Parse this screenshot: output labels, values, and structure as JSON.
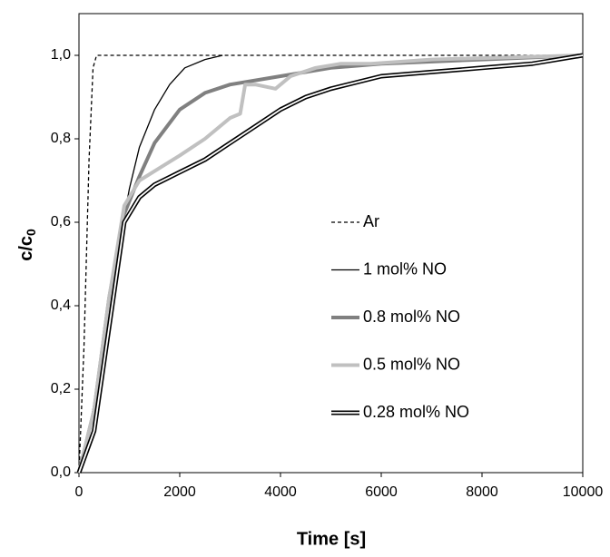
{
  "chart_data": {
    "type": "line",
    "x_label": "Time [s]",
    "y_label": "c/c",
    "y_label_subscript": "0",
    "xlim": [
      0,
      10000
    ],
    "ylim": [
      0,
      1.1
    ],
    "xticks": [
      0,
      2000,
      4000,
      6000,
      8000,
      10000
    ],
    "yticks": [
      {
        "value": 0,
        "label": "0,0"
      },
      {
        "value": 0.2,
        "label": "0,2"
      },
      {
        "value": 0.4,
        "label": "0,4"
      },
      {
        "value": 0.6,
        "label": "0,6"
      },
      {
        "value": 0.8,
        "label": "0,8"
      },
      {
        "value": 1.0,
        "label": "1,0"
      }
    ],
    "grid": false,
    "legend": "right",
    "series": [
      {
        "name": "Ar",
        "color": "#000000",
        "line_style": "dashed",
        "x": [
          0,
          100,
          200,
          280,
          350,
          10000
        ],
        "values": [
          0,
          0.3,
          0.75,
          0.97,
          1.0,
          1.0
        ]
      },
      {
        "name": "1 mol% NO",
        "color": "#000000",
        "line_style": "thin",
        "x": [
          0,
          200,
          500,
          800,
          1000,
          1200,
          1500,
          1800,
          2100,
          2500,
          2850
        ],
        "values": [
          0,
          0.1,
          0.3,
          0.55,
          0.68,
          0.78,
          0.87,
          0.93,
          0.97,
          0.99,
          1.0
        ]
      },
      {
        "name": "0.8 mol% NO",
        "color": "#808080",
        "line_style": "thick",
        "x": [
          0,
          300,
          600,
          900,
          1200,
          1500,
          2000,
          2500,
          3000,
          4000,
          5000,
          6000,
          8000,
          10000
        ],
        "values": [
          0,
          0.15,
          0.42,
          0.62,
          0.71,
          0.79,
          0.87,
          0.91,
          0.93,
          0.95,
          0.97,
          0.98,
          0.99,
          1.0
        ]
      },
      {
        "name": "0.5 mol% NO",
        "color": "#c0c0c0",
        "line_style": "thick",
        "x": [
          0,
          300,
          600,
          900,
          1200,
          1600,
          2000,
          2500,
          3000,
          3200,
          3300,
          3500,
          3900,
          4200,
          4700,
          5200,
          5800,
          7000,
          10000
        ],
        "values": [
          0,
          0.15,
          0.42,
          0.64,
          0.7,
          0.73,
          0.76,
          0.8,
          0.85,
          0.86,
          0.93,
          0.93,
          0.92,
          0.95,
          0.97,
          0.98,
          0.98,
          0.99,
          1.0
        ]
      },
      {
        "name": "0.28 mol% NO",
        "color": "#000000",
        "line_style": "double",
        "x": [
          0,
          300,
          600,
          900,
          1200,
          1500,
          2000,
          2500,
          3000,
          3500,
          4000,
          4500,
          5000,
          6000,
          7000,
          8000,
          9000,
          10000
        ],
        "values": [
          0,
          0.1,
          0.35,
          0.6,
          0.66,
          0.69,
          0.72,
          0.75,
          0.79,
          0.83,
          0.87,
          0.9,
          0.92,
          0.95,
          0.96,
          0.97,
          0.98,
          1.0
        ]
      }
    ]
  }
}
